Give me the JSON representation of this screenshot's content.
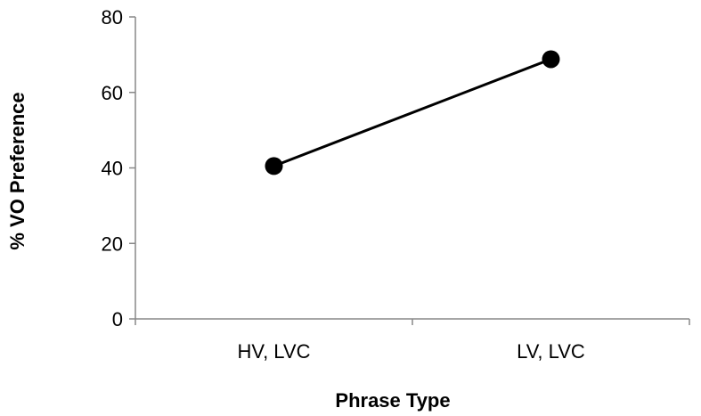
{
  "chart_data": {
    "type": "line",
    "title": "",
    "xlabel": "Phrase Type",
    "ylabel": "% VO Preference",
    "categories": [
      "HV, LVC",
      "LV, LVC"
    ],
    "series": [
      {
        "values": [
          40.5,
          68.8
        ]
      }
    ],
    "ylim": [
      0,
      80
    ],
    "yticks": [
      "0",
      "20",
      "40",
      "60",
      "80"
    ],
    "grid": false,
    "legend": "none",
    "colors": {
      "line": "#000000",
      "marker": "#000000",
      "axis": "#888888"
    }
  }
}
